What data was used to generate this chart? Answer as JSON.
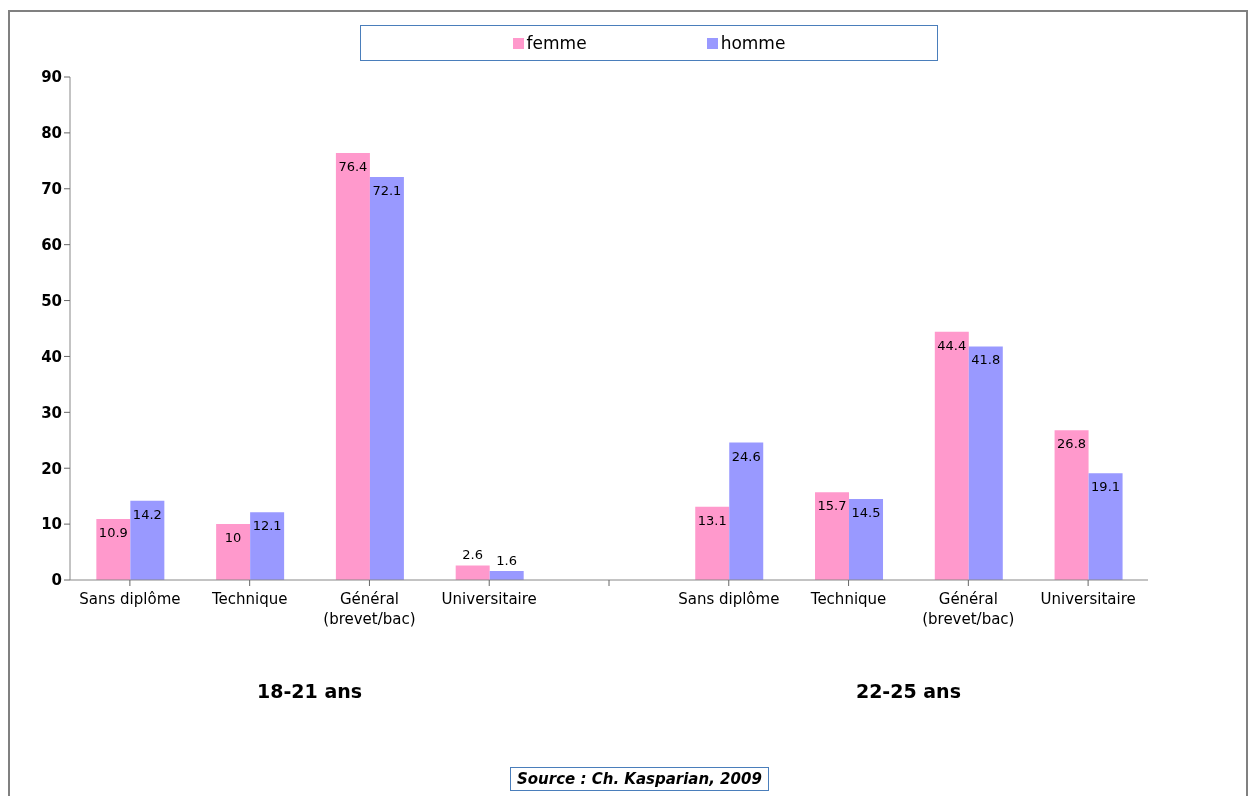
{
  "chart_data": {
    "type": "bar",
    "categories": [
      "Sans diplôme",
      "Technique",
      "Général (brevet/bac)",
      "Universitaire",
      null,
      "Sans diplôme",
      "Technique",
      "Général (brevet/bac)",
      "Universitaire"
    ],
    "series": [
      {
        "name": "femme",
        "color": "#ff99cc",
        "values": [
          10.9,
          10,
          76.4,
          2.6,
          null,
          13.1,
          15.7,
          44.4,
          26.8
        ]
      },
      {
        "name": "homme",
        "color": "#9999ff",
        "values": [
          14.2,
          12.1,
          72.1,
          1.6,
          null,
          24.6,
          14.5,
          41.8,
          19.1
        ]
      }
    ],
    "ylim": [
      0,
      90
    ],
    "yticks": [
      0,
      10,
      20,
      30,
      40,
      50,
      60,
      70,
      80,
      90
    ],
    "grid": false,
    "legend": "top",
    "data_labels": true,
    "annotations": [
      "18-21 ans",
      "22-25 ans",
      "Source : Ch. Kasparian, 2009"
    ]
  }
}
